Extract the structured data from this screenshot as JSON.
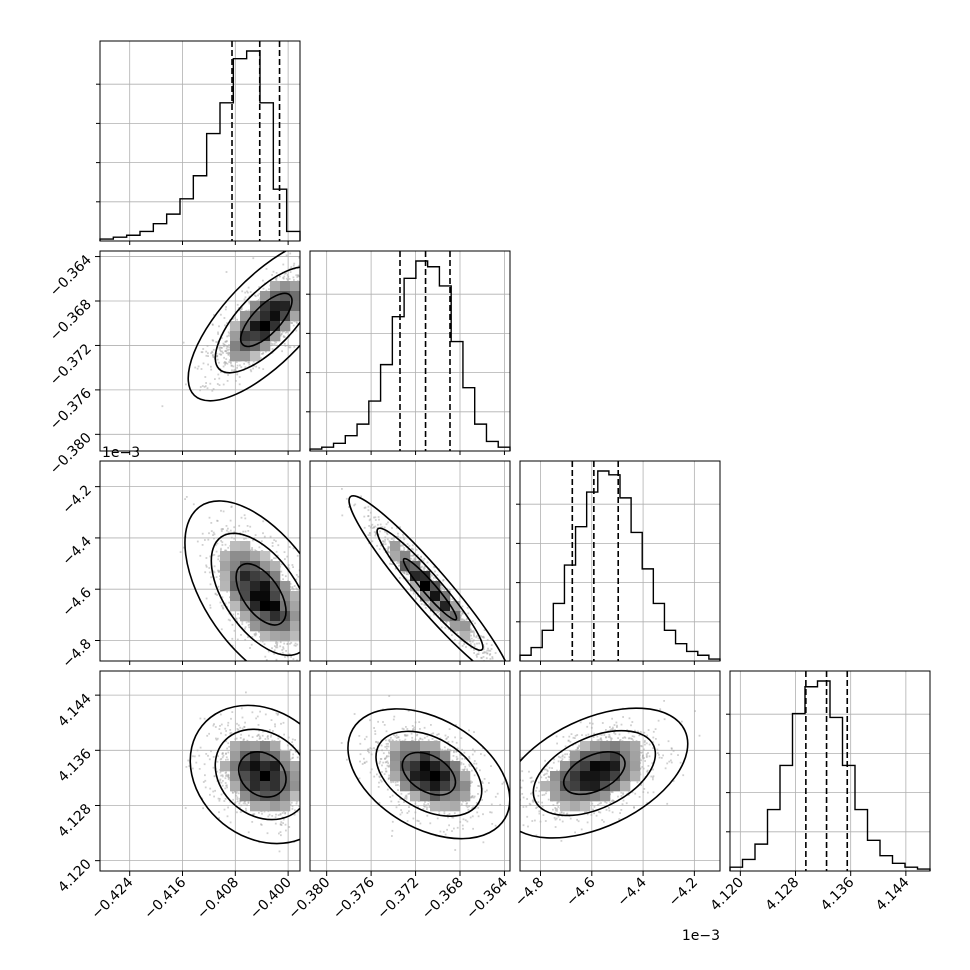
{
  "chart_data": {
    "type": "corner",
    "title": "",
    "n_params": 4,
    "axes": [
      {
        "lim": [
          -0.4285,
          -0.3982
        ],
        "ticks": [
          -0.424,
          -0.416,
          -0.408,
          -0.4
        ],
        "tick_labels": [
          "−0.424",
          "−0.416",
          "−0.408",
          "−0.400"
        ],
        "offset_text": ""
      },
      {
        "lim": [
          -0.3815,
          -0.3635
        ],
        "ticks": [
          -0.38,
          -0.376,
          -0.372,
          -0.368,
          -0.364
        ],
        "tick_labels": [
          "−0.380",
          "−0.376",
          "−0.372",
          "−0.368",
          "−0.364"
        ],
        "offset_text": ""
      },
      {
        "lim": [
          -4.88,
          -4.1
        ],
        "ticks": [
          -4.8,
          -4.6,
          -4.4,
          -4.2
        ],
        "tick_labels": [
          "−4.8",
          "−4.6",
          "−4.4",
          "−4.2"
        ],
        "offset_text": "1e−3"
      },
      {
        "lim": [
          4.1185,
          4.1475
        ],
        "ticks": [
          4.12,
          4.128,
          4.136,
          4.144
        ],
        "tick_labels": [
          "4.120",
          "4.128",
          "4.136",
          "4.144"
        ],
        "offset_text": ""
      }
    ],
    "y_offset_text": "1e−3",
    "histograms": [
      {
        "quantiles": [
          -0.4085,
          -0.4043,
          -0.4013
        ],
        "counts": [
          1,
          2,
          3,
          5,
          9,
          14,
          22,
          34,
          56,
          72,
          95,
          99,
          72,
          27,
          5
        ]
      },
      {
        "quantiles": [
          -0.3734,
          -0.3711,
          -0.3689
        ],
        "counts": [
          1,
          2,
          4,
          8,
          14,
          26,
          45,
          70,
          90,
          99,
          96,
          86,
          57,
          33,
          14,
          5,
          2
        ]
      },
      {
        "quantiles": [
          -4.676,
          -4.592,
          -4.497
        ],
        "counts": [
          3,
          7,
          16,
          30,
          50,
          70,
          88,
          99,
          97,
          85,
          67,
          48,
          30,
          16,
          9,
          5,
          3,
          1
        ]
      },
      {
        "quantiles": [
          4.1295,
          4.1325,
          4.1355
        ],
        "counts": [
          2,
          6,
          14,
          32,
          55,
          82,
          96,
          99,
          80,
          55,
          32,
          16,
          8,
          4,
          2,
          1
        ]
      }
    ],
    "contour_panels": [
      {
        "row": 1,
        "col": 0,
        "center": [
          -0.4033,
          -0.3697
        ],
        "sigma": [
          0.0039,
          0.0024
        ],
        "rho": 0.72
      },
      {
        "row": 2,
        "col": 0,
        "center": [
          -0.4041,
          -4.62
        ],
        "sigma": [
          0.0038,
          0.12
        ],
        "rho": -0.55
      },
      {
        "row": 2,
        "col": 1,
        "center": [
          -0.3707,
          -4.6
        ],
        "sigma": [
          0.0024,
          0.12
        ],
        "rho": -0.95
      },
      {
        "row": 3,
        "col": 0,
        "center": [
          -0.4039,
          4.1325
        ],
        "sigma": [
          0.0036,
          0.0033
        ],
        "rho": -0.2
      },
      {
        "row": 3,
        "col": 1,
        "center": [
          -0.3708,
          4.1326
        ],
        "sigma": [
          0.0024,
          0.0031
        ],
        "rho": -0.4
      },
      {
        "row": 3,
        "col": 2,
        "center": [
          -4.59,
          4.1327
        ],
        "sigma": [
          0.12,
          0.0031
        ],
        "rho": 0.45
      }
    ],
    "contour_levels": [
      0.39,
      0.86,
      0.99
    ],
    "grid": true,
    "colors": {
      "hist": "#000000",
      "quantile": "#000000",
      "points": "#aaaaaa",
      "contour": "#000000",
      "grid": "#b0b0b0"
    }
  }
}
